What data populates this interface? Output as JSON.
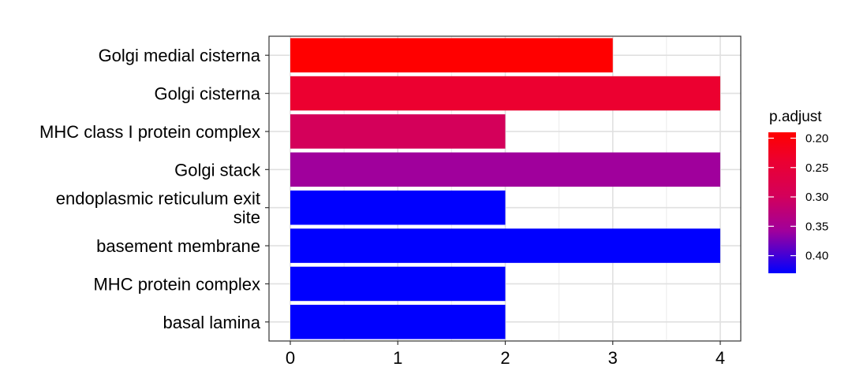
{
  "chart_data": {
    "type": "bar",
    "orientation": "horizontal",
    "categories": [
      "Golgi medial cisterna",
      "Golgi cisterna",
      "MHC class I protein complex",
      "Golgi stack",
      "endoplasmic reticulum exit site",
      "basement membrane",
      "MHC protein complex",
      "basal lamina"
    ],
    "category_display_lines": [
      [
        "Golgi medial cisterna"
      ],
      [
        "Golgi cisterna"
      ],
      [
        "MHC class I protein complex"
      ],
      [
        "Golgi stack"
      ],
      [
        "endoplasmic reticulum exit",
        "site"
      ],
      [
        "basement membrane"
      ],
      [
        "MHC protein complex"
      ],
      [
        "basal lamina"
      ]
    ],
    "values": [
      3,
      4,
      2,
      4,
      2,
      4,
      2,
      2
    ],
    "p_adjust": [
      0.19,
      0.23,
      0.28,
      0.36,
      0.43,
      0.43,
      0.43,
      0.43
    ],
    "xlim": [
      0,
      4.2
    ],
    "xticks": [
      0,
      1,
      2,
      3,
      4
    ],
    "xtick_labels": [
      "0",
      "1",
      "2",
      "3",
      "4"
    ],
    "title": "",
    "xlabel": "",
    "ylabel": "",
    "grid": true,
    "legend": {
      "title": "p.adjust",
      "placement": "right",
      "type": "colorbar",
      "range": [
        0.19,
        0.43
      ],
      "ticks": [
        0.2,
        0.25,
        0.3,
        0.35,
        0.4
      ],
      "tick_labels": [
        "0.20",
        "0.25",
        "0.30",
        "0.35",
        "0.40"
      ],
      "low_color": "#ff0000",
      "high_color": "#0000ff"
    },
    "bar_colors": [
      "#ff0000",
      "#ec0030",
      "#d4005a",
      "#a0009c",
      "#0000ff",
      "#0000ff",
      "#0000ff",
      "#0000ff"
    ]
  }
}
